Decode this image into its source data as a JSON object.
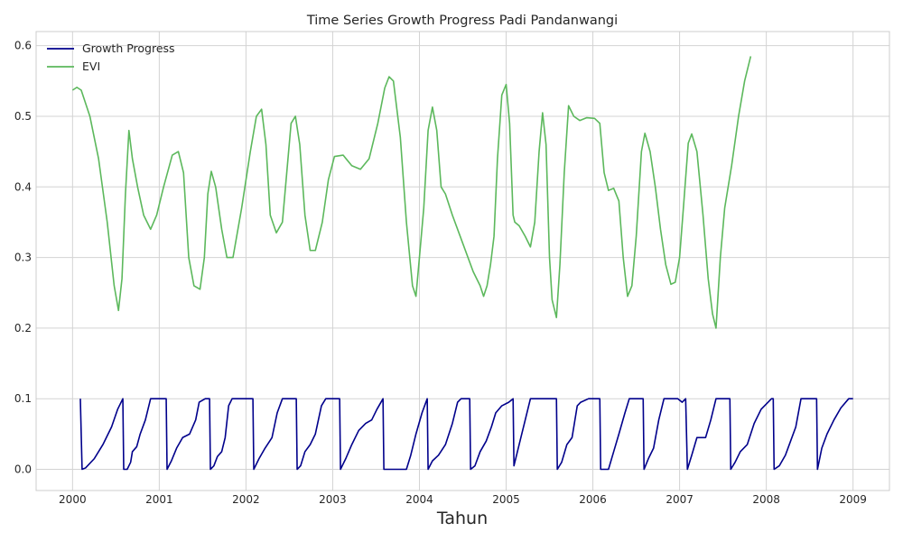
{
  "chart_data": {
    "type": "line",
    "title": "Time Series Growth Progress Padi Pandanwangi",
    "xlabel": "Tahun",
    "ylabel": "",
    "xlim": [
      1999.58,
      2009.42
    ],
    "ylim": [
      -0.03,
      0.62
    ],
    "xticks": [
      2000,
      2001,
      2002,
      2003,
      2004,
      2005,
      2006,
      2007,
      2008,
      2009
    ],
    "yticks": [
      0.0,
      0.1,
      0.2,
      0.3,
      0.4,
      0.5,
      0.6
    ],
    "grid": true,
    "legend_position": "top-left",
    "series": [
      {
        "name": "Growth Progress",
        "color": "#00008b",
        "points": [
          [
            2000.09,
            0.1
          ],
          [
            2000.11,
            0.0
          ],
          [
            2000.15,
            0.002
          ],
          [
            2000.25,
            0.015
          ],
          [
            2000.35,
            0.035
          ],
          [
            2000.45,
            0.06
          ],
          [
            2000.52,
            0.085
          ],
          [
            2000.58,
            0.1
          ],
          [
            2000.59,
            0.0
          ],
          [
            2000.63,
            0.0
          ],
          [
            2000.67,
            0.01
          ],
          [
            2000.69,
            0.025
          ],
          [
            2000.74,
            0.032
          ],
          [
            2000.78,
            0.05
          ],
          [
            2000.84,
            0.07
          ],
          [
            2000.9,
            0.1
          ],
          [
            2001.08,
            0.1
          ],
          [
            2001.09,
            0.0
          ],
          [
            2001.14,
            0.012
          ],
          [
            2001.2,
            0.03
          ],
          [
            2001.27,
            0.045
          ],
          [
            2001.35,
            0.05
          ],
          [
            2001.42,
            0.07
          ],
          [
            2001.46,
            0.095
          ],
          [
            2001.53,
            0.1
          ],
          [
            2001.58,
            0.1
          ],
          [
            2001.59,
            0.0
          ],
          [
            2001.63,
            0.005
          ],
          [
            2001.67,
            0.018
          ],
          [
            2001.72,
            0.025
          ],
          [
            2001.76,
            0.045
          ],
          [
            2001.8,
            0.09
          ],
          [
            2001.84,
            0.1
          ],
          [
            2002.08,
            0.1
          ],
          [
            2002.09,
            0.0
          ],
          [
            2002.15,
            0.015
          ],
          [
            2002.22,
            0.03
          ],
          [
            2002.3,
            0.045
          ],
          [
            2002.36,
            0.08
          ],
          [
            2002.42,
            0.1
          ],
          [
            2002.58,
            0.1
          ],
          [
            2002.59,
            0.0
          ],
          [
            2002.63,
            0.005
          ],
          [
            2002.68,
            0.025
          ],
          [
            2002.74,
            0.035
          ],
          [
            2002.8,
            0.05
          ],
          [
            2002.87,
            0.09
          ],
          [
            2002.92,
            0.1
          ],
          [
            2003.08,
            0.1
          ],
          [
            2003.09,
            0.0
          ],
          [
            2003.15,
            0.015
          ],
          [
            2003.22,
            0.035
          ],
          [
            2003.3,
            0.055
          ],
          [
            2003.38,
            0.065
          ],
          [
            2003.45,
            0.07
          ],
          [
            2003.51,
            0.085
          ],
          [
            2003.58,
            0.1
          ],
          [
            2003.59,
            0.0
          ],
          [
            2003.85,
            0.0
          ],
          [
            2003.9,
            0.02
          ],
          [
            2003.96,
            0.05
          ],
          [
            2004.03,
            0.08
          ],
          [
            2004.09,
            0.1
          ],
          [
            2004.1,
            0.0
          ],
          [
            2004.15,
            0.012
          ],
          [
            2004.22,
            0.02
          ],
          [
            2004.3,
            0.035
          ],
          [
            2004.38,
            0.065
          ],
          [
            2004.44,
            0.095
          ],
          [
            2004.48,
            0.1
          ],
          [
            2004.58,
            0.1
          ],
          [
            2004.59,
            0.0
          ],
          [
            2004.64,
            0.005
          ],
          [
            2004.7,
            0.025
          ],
          [
            2004.77,
            0.04
          ],
          [
            2004.83,
            0.06
          ],
          [
            2004.88,
            0.08
          ],
          [
            2004.95,
            0.09
          ],
          [
            2005.03,
            0.095
          ],
          [
            2005.08,
            0.1
          ],
          [
            2005.09,
            0.005
          ],
          [
            2005.15,
            0.035
          ],
          [
            2005.22,
            0.07
          ],
          [
            2005.28,
            0.1
          ],
          [
            2005.58,
            0.1
          ],
          [
            2005.59,
            0.0
          ],
          [
            2005.64,
            0.01
          ],
          [
            2005.7,
            0.035
          ],
          [
            2005.76,
            0.045
          ],
          [
            2005.82,
            0.09
          ],
          [
            2005.86,
            0.095
          ],
          [
            2005.95,
            0.1
          ],
          [
            2006.08,
            0.1
          ],
          [
            2006.09,
            0.0
          ],
          [
            2006.18,
            0.0
          ],
          [
            2006.24,
            0.025
          ],
          [
            2006.3,
            0.05
          ],
          [
            2006.37,
            0.08
          ],
          [
            2006.42,
            0.1
          ],
          [
            2006.58,
            0.1
          ],
          [
            2006.59,
            0.0
          ],
          [
            2006.64,
            0.015
          ],
          [
            2006.7,
            0.03
          ],
          [
            2006.76,
            0.07
          ],
          [
            2006.82,
            0.1
          ],
          [
            2006.98,
            0.1
          ],
          [
            2007.03,
            0.095
          ],
          [
            2007.07,
            0.1
          ],
          [
            2007.09,
            0.0
          ],
          [
            2007.14,
            0.02
          ],
          [
            2007.2,
            0.045
          ],
          [
            2007.3,
            0.045
          ],
          [
            2007.36,
            0.07
          ],
          [
            2007.42,
            0.1
          ],
          [
            2007.58,
            0.1
          ],
          [
            2007.59,
            0.0
          ],
          [
            2007.64,
            0.01
          ],
          [
            2007.7,
            0.025
          ],
          [
            2007.78,
            0.035
          ],
          [
            2007.86,
            0.065
          ],
          [
            2007.94,
            0.085
          ],
          [
            2008.06,
            0.1
          ],
          [
            2008.08,
            0.1
          ],
          [
            2008.09,
            0.0
          ],
          [
            2008.15,
            0.005
          ],
          [
            2008.22,
            0.02
          ],
          [
            2008.28,
            0.04
          ],
          [
            2008.34,
            0.06
          ],
          [
            2008.4,
            0.1
          ],
          [
            2008.58,
            0.1
          ],
          [
            2008.59,
            0.0
          ],
          [
            2008.64,
            0.03
          ],
          [
            2008.7,
            0.05
          ],
          [
            2008.78,
            0.07
          ],
          [
            2008.86,
            0.087
          ],
          [
            2008.95,
            0.1
          ],
          [
            2009.0,
            0.1
          ]
        ]
      },
      {
        "name": "EVI",
        "color": "#5cb85c",
        "points": [
          [
            2000.0,
            0.537
          ],
          [
            2000.05,
            0.541
          ],
          [
            2000.1,
            0.537
          ],
          [
            2000.2,
            0.5
          ],
          [
            2000.3,
            0.44
          ],
          [
            2000.4,
            0.35
          ],
          [
            2000.48,
            0.26
          ],
          [
            2000.53,
            0.225
          ],
          [
            2000.57,
            0.27
          ],
          [
            2000.61,
            0.39
          ],
          [
            2000.65,
            0.48
          ],
          [
            2000.69,
            0.44
          ],
          [
            2000.75,
            0.4
          ],
          [
            2000.82,
            0.36
          ],
          [
            2000.9,
            0.34
          ],
          [
            2000.97,
            0.36
          ],
          [
            2001.05,
            0.4
          ],
          [
            2001.15,
            0.445
          ],
          [
            2001.22,
            0.45
          ],
          [
            2001.28,
            0.42
          ],
          [
            2001.34,
            0.3
          ],
          [
            2001.4,
            0.26
          ],
          [
            2001.47,
            0.255
          ],
          [
            2001.52,
            0.3
          ],
          [
            2001.56,
            0.39
          ],
          [
            2001.6,
            0.422
          ],
          [
            2001.65,
            0.4
          ],
          [
            2001.72,
            0.34
          ],
          [
            2001.78,
            0.3
          ],
          [
            2001.85,
            0.3
          ],
          [
            2001.95,
            0.37
          ],
          [
            2002.05,
            0.45
          ],
          [
            2002.12,
            0.5
          ],
          [
            2002.18,
            0.51
          ],
          [
            2002.23,
            0.46
          ],
          [
            2002.28,
            0.36
          ],
          [
            2002.35,
            0.335
          ],
          [
            2002.42,
            0.35
          ],
          [
            2002.47,
            0.42
          ],
          [
            2002.52,
            0.49
          ],
          [
            2002.57,
            0.5
          ],
          [
            2002.62,
            0.46
          ],
          [
            2002.68,
            0.36
          ],
          [
            2002.74,
            0.31
          ],
          [
            2002.8,
            0.31
          ],
          [
            2002.88,
            0.35
          ],
          [
            2002.95,
            0.41
          ],
          [
            2003.02,
            0.443
          ],
          [
            2003.12,
            0.445
          ],
          [
            2003.22,
            0.43
          ],
          [
            2003.32,
            0.425
          ],
          [
            2003.42,
            0.44
          ],
          [
            2003.52,
            0.49
          ],
          [
            2003.6,
            0.54
          ],
          [
            2003.65,
            0.556
          ],
          [
            2003.7,
            0.55
          ],
          [
            2003.78,
            0.47
          ],
          [
            2003.85,
            0.35
          ],
          [
            2003.92,
            0.26
          ],
          [
            2003.96,
            0.245
          ],
          [
            2004.0,
            0.3
          ],
          [
            2004.05,
            0.37
          ],
          [
            2004.1,
            0.48
          ],
          [
            2004.15,
            0.513
          ],
          [
            2004.2,
            0.48
          ],
          [
            2004.25,
            0.4
          ],
          [
            2004.3,
            0.39
          ],
          [
            2004.38,
            0.36
          ],
          [
            2004.5,
            0.32
          ],
          [
            2004.62,
            0.28
          ],
          [
            2004.7,
            0.26
          ],
          [
            2004.74,
            0.245
          ],
          [
            2004.78,
            0.26
          ],
          [
            2004.82,
            0.29
          ],
          [
            2004.86,
            0.33
          ],
          [
            2004.9,
            0.44
          ],
          [
            2004.95,
            0.53
          ],
          [
            2005.0,
            0.545
          ],
          [
            2005.04,
            0.49
          ],
          [
            2005.08,
            0.36
          ],
          [
            2005.1,
            0.35
          ],
          [
            2005.15,
            0.345
          ],
          [
            2005.22,
            0.33
          ],
          [
            2005.28,
            0.315
          ],
          [
            2005.33,
            0.35
          ],
          [
            2005.38,
            0.45
          ],
          [
            2005.42,
            0.505
          ],
          [
            2005.46,
            0.46
          ],
          [
            2005.5,
            0.3
          ],
          [
            2005.53,
            0.24
          ],
          [
            2005.58,
            0.215
          ],
          [
            2005.62,
            0.29
          ],
          [
            2005.67,
            0.42
          ],
          [
            2005.72,
            0.515
          ],
          [
            2005.78,
            0.5
          ],
          [
            2005.85,
            0.494
          ],
          [
            2005.93,
            0.498
          ],
          [
            2006.02,
            0.497
          ],
          [
            2006.08,
            0.49
          ],
          [
            2006.13,
            0.42
          ],
          [
            2006.18,
            0.395
          ],
          [
            2006.24,
            0.398
          ],
          [
            2006.3,
            0.38
          ],
          [
            2006.35,
            0.3
          ],
          [
            2006.4,
            0.245
          ],
          [
            2006.45,
            0.26
          ],
          [
            2006.5,
            0.33
          ],
          [
            2006.56,
            0.45
          ],
          [
            2006.6,
            0.476
          ],
          [
            2006.66,
            0.45
          ],
          [
            2006.72,
            0.4
          ],
          [
            2006.78,
            0.34
          ],
          [
            2006.84,
            0.29
          ],
          [
            2006.9,
            0.262
          ],
          [
            2006.95,
            0.265
          ],
          [
            2007.0,
            0.3
          ],
          [
            2007.05,
            0.38
          ],
          [
            2007.1,
            0.462
          ],
          [
            2007.14,
            0.475
          ],
          [
            2007.2,
            0.45
          ],
          [
            2007.27,
            0.36
          ],
          [
            2007.33,
            0.27
          ],
          [
            2007.38,
            0.22
          ],
          [
            2007.42,
            0.2
          ],
          [
            2007.47,
            0.3
          ],
          [
            2007.52,
            0.37
          ],
          [
            2007.6,
            0.43
          ],
          [
            2007.68,
            0.5
          ],
          [
            2007.75,
            0.55
          ],
          [
            2007.82,
            0.585
          ]
        ]
      }
    ]
  }
}
